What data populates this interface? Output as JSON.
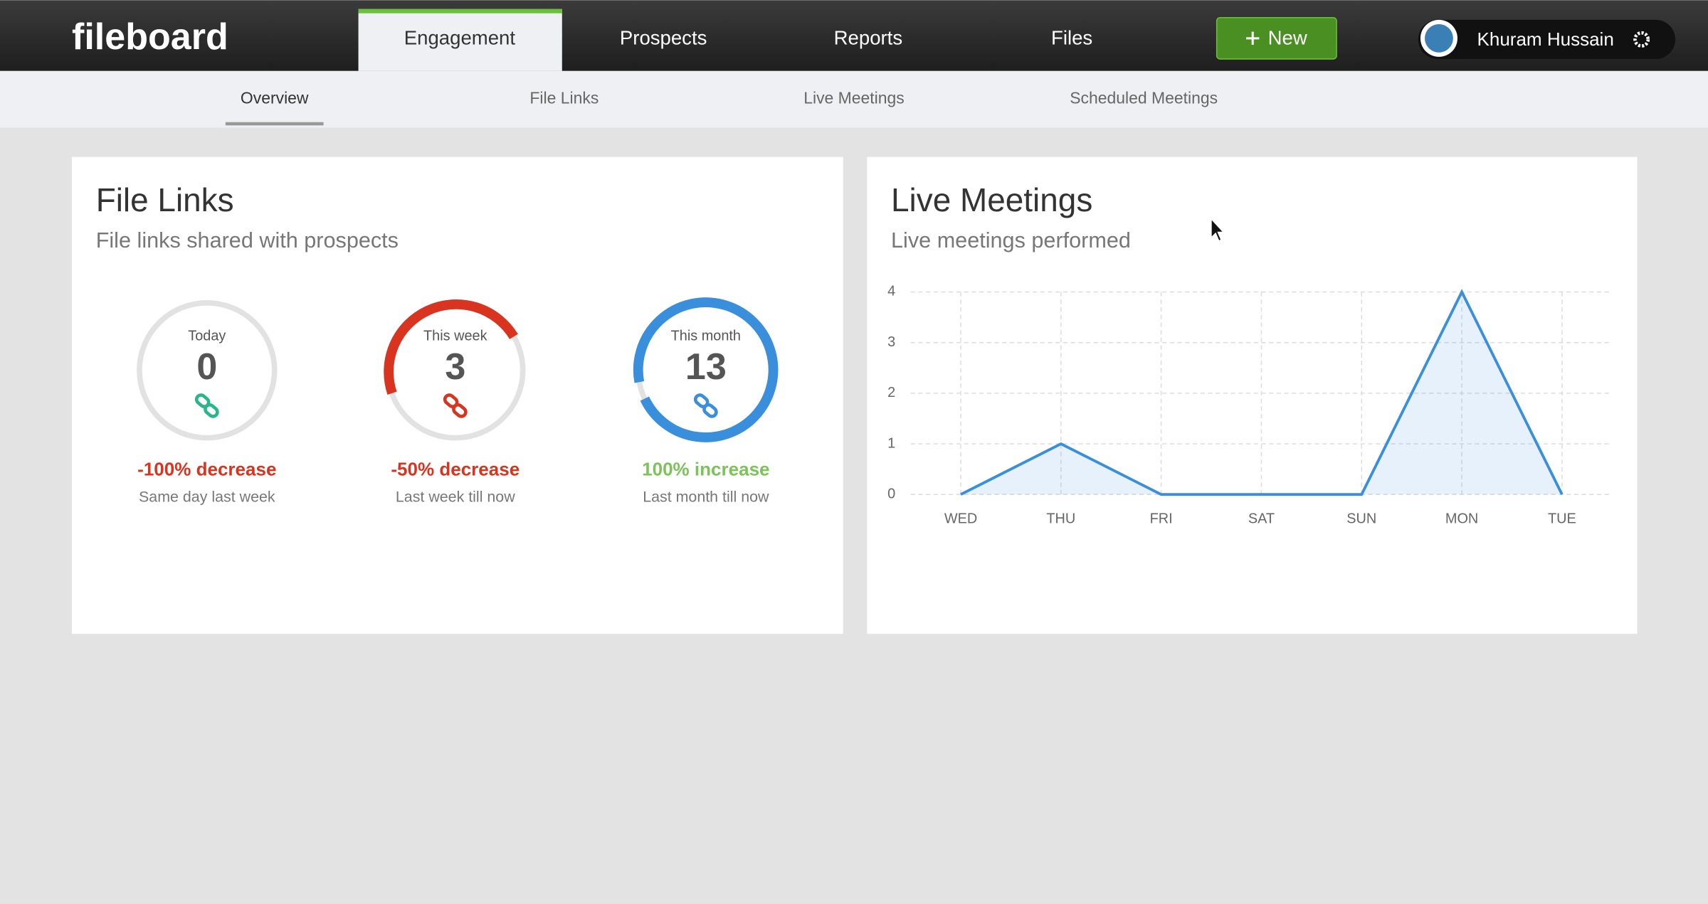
{
  "nav": {
    "logo": "fileboard",
    "tabs": [
      "Engagement",
      "Prospects",
      "Reports",
      "Files"
    ],
    "new_button": "New",
    "user": "Khuram Hussain"
  },
  "subnav": [
    "Overview",
    "File Links",
    "Live Meetings",
    "Scheduled Meetings"
  ],
  "file_links": {
    "title": "File Links",
    "subtitle": "File links shared with prospects",
    "stats": [
      {
        "label": "Today",
        "value": 0,
        "change": "-100% decrease",
        "period": "Same day last week"
      },
      {
        "label": "This week",
        "value": 3,
        "change": "-50% decrease",
        "period": "Last week till now"
      },
      {
        "label": "This month",
        "value": 13,
        "change": "100% increase",
        "period": "Last month till now"
      }
    ]
  },
  "chart_data": {
    "type": "line",
    "title": "Live Meetings",
    "subtitle": "Live meetings performed",
    "categories": [
      "WED",
      "THU",
      "FRI",
      "SAT",
      "SUN",
      "MON",
      "TUE"
    ],
    "values": [
      0,
      1,
      0,
      0,
      0,
      4,
      0
    ],
    "color": "#3a8fdc",
    "ylim": [
      0,
      4
    ],
    "yticks": [
      0,
      1,
      2,
      3,
      4
    ],
    "grid": true
  }
}
